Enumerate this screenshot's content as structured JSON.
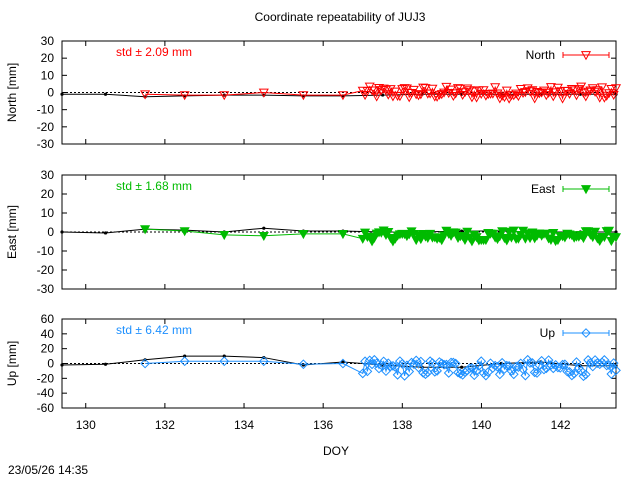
{
  "title": "Coordinate repeatability of JUJ3",
  "timestamp": "23/05/26 14:35",
  "xlabel": "DOY",
  "xlim": [
    129.4,
    143.4
  ],
  "xticks": [
    130,
    132,
    134,
    136,
    138,
    140,
    142
  ],
  "chart_data": [
    {
      "type": "line",
      "name": "north",
      "ylabel": "North [mm]",
      "ylim": [
        -30,
        30
      ],
      "yticks": [
        -30,
        -20,
        -10,
        0,
        10,
        20,
        30
      ],
      "legend": "North",
      "legend_position": "top-right",
      "annotation": "std ± 2.09 mm",
      "color": "#ff0000",
      "marker": "triangle-down-open",
      "reference": {
        "x": [
          129.4,
          130.5,
          131.5,
          132.5,
          133.5,
          134.5,
          135.5,
          136.5,
          137.5,
          138.5,
          139.5,
          140.5,
          141.5,
          142.5,
          143.4
        ],
        "y": [
          -1,
          -1,
          -2.5,
          -2,
          -1.5,
          -1.5,
          -2,
          -2,
          -1.5,
          -1,
          -1,
          -1,
          -1,
          -1,
          -1
        ]
      },
      "series": {
        "x": [
          131.5,
          132.5,
          133.5,
          134.5,
          135.5,
          136.5
        ],
        "y": [
          -1,
          -1.5,
          -1.5,
          0,
          -1.5,
          -1.5
        ],
        "dense_start": 137.0,
        "dense_end": 143.4,
        "dense_mean": 0,
        "dense_amp": 2.2
      }
    },
    {
      "type": "line",
      "name": "east",
      "ylabel": "East [mm]",
      "ylim": [
        -30,
        30
      ],
      "yticks": [
        -30,
        -20,
        -10,
        0,
        10,
        20,
        30
      ],
      "legend": "East",
      "legend_position": "top-right",
      "annotation": "std ± 1.68 mm",
      "color": "#00bb00",
      "marker": "triangle-down-filled",
      "reference": {
        "x": [
          129.4,
          130.5,
          131.5,
          132.5,
          133.5,
          134.5,
          135.5,
          136.5,
          137.5,
          138.5,
          139.5,
          140.5,
          141.5,
          142.5,
          143.4
        ],
        "y": [
          0,
          -0.5,
          1.5,
          1,
          0,
          2,
          0.5,
          0.5,
          0,
          0,
          0.5,
          0.5,
          0,
          0,
          0
        ]
      },
      "series": {
        "x": [
          131.5,
          132.5,
          133.5,
          134.5,
          135.5,
          136.5
        ],
        "y": [
          1.5,
          0.5,
          -1.5,
          -2,
          -1,
          -1
        ],
        "dense_start": 137.0,
        "dense_end": 143.4,
        "dense_mean": -2,
        "dense_amp": 1.8
      }
    },
    {
      "type": "line",
      "name": "up",
      "ylabel": "Up [mm]",
      "ylim": [
        -60,
        60
      ],
      "yticks": [
        -60,
        -40,
        -20,
        0,
        20,
        40,
        60
      ],
      "legend": "Up",
      "legend_position": "top-right",
      "annotation": "std ± 6.42 mm",
      "color": "#1e90ff",
      "marker": "diamond-open",
      "reference": {
        "x": [
          129.4,
          130.5,
          131.5,
          132.5,
          133.5,
          134.5,
          135.5,
          136.5,
          137.5,
          138.5,
          139.5,
          140.5,
          141.5,
          142.5,
          143.4
        ],
        "y": [
          -2,
          -1,
          5,
          10,
          10,
          8,
          -2,
          2,
          -2,
          -5,
          -5,
          0,
          2,
          -3,
          -3
        ]
      },
      "series": {
        "x": [
          131.5,
          132.5,
          133.5,
          134.5,
          135.5,
          136.5
        ],
        "y": [
          0,
          3,
          3,
          3,
          -1,
          0
        ],
        "dense_start": 137.0,
        "dense_end": 143.4,
        "dense_mean": -6,
        "dense_amp": 7
      }
    }
  ]
}
